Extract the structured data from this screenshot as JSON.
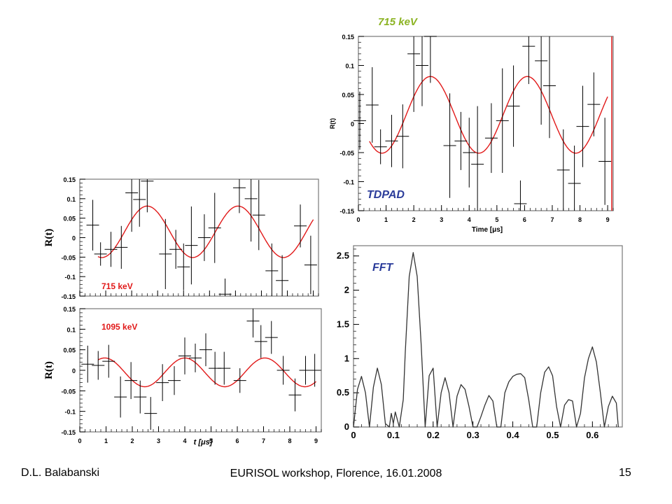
{
  "footer": {
    "author": "D.L. Balabanski",
    "event": "EURISOL workshop, Florence, 16.01.2008",
    "page": "15"
  },
  "colors": {
    "fit": "#e11919",
    "data": "#000000",
    "fft": "#333333",
    "label_blue": "#2b3c9a",
    "label_green": "#8bb322",
    "label_red": "#e11919"
  },
  "chart_data": [
    {
      "id": "tdpad-715",
      "type": "scatter",
      "title": "715 keV",
      "label": "TDPAD",
      "xlabel": "Time [μs]",
      "ylabel": "R(t)",
      "xlim": [
        0,
        9.2
      ],
      "ylim": [
        -0.15,
        0.15
      ],
      "xticks": [
        "0",
        "1",
        "2",
        "3",
        "4",
        "5",
        "6",
        "7",
        "8",
        "9"
      ],
      "yticks": [
        "0.15",
        "0.1",
        "0.05",
        "0",
        "-0.05",
        "-0.1",
        "-0.15"
      ],
      "fit": {
        "amplitude": 0.066,
        "period": 3.5,
        "phase_peak": 2.6,
        "offset": 0.015
      },
      "points": [
        {
          "x": 0.05,
          "y": 0.005,
          "err": 0.05
        },
        {
          "x": 0.5,
          "y": 0.032,
          "err": 0.065
        },
        {
          "x": 0.8,
          "y": -0.04,
          "err": 0.03
        },
        {
          "x": 1.2,
          "y": -0.03,
          "err": 0.045
        },
        {
          "x": 1.6,
          "y": -0.022,
          "err": 0.055
        },
        {
          "x": 2.0,
          "y": 0.12,
          "err": 0.1
        },
        {
          "x": 2.3,
          "y": 0.1,
          "err": 0.07
        },
        {
          "x": 2.6,
          "y": 0.15,
          "err": 0.08
        },
        {
          "x": 3.3,
          "y": -0.038,
          "err": 0.09
        },
        {
          "x": 3.7,
          "y": -0.03,
          "err": 0.05
        },
        {
          "x": 4.0,
          "y": -0.05,
          "err": 0.06
        },
        {
          "x": 4.3,
          "y": -0.07,
          "err": 0.1
        },
        {
          "x": 4.8,
          "y": -0.025,
          "err": 0.06
        },
        {
          "x": 5.2,
          "y": 0.005,
          "err": 0.09
        },
        {
          "x": 5.6,
          "y": 0.03,
          "err": 0.07
        },
        {
          "x": 5.85,
          "y": -0.138,
          "err": 0.04
        },
        {
          "x": 6.15,
          "y": 0.133,
          "err": 0.065
        },
        {
          "x": 6.6,
          "y": 0.108,
          "err": 0.11
        },
        {
          "x": 6.9,
          "y": 0.065,
          "err": 0.09
        },
        {
          "x": 7.4,
          "y": -0.08,
          "err": 0.07
        },
        {
          "x": 7.8,
          "y": -0.103,
          "err": 0.065
        },
        {
          "x": 8.1,
          "y": -0.005,
          "err": 0.07
        },
        {
          "x": 8.5,
          "y": 0.033,
          "err": 0.055
        },
        {
          "x": 8.9,
          "y": -0.065,
          "err": 0.075
        }
      ]
    },
    {
      "id": "rt-715",
      "type": "scatter",
      "label": "715  keV",
      "ylabel": "R(t)",
      "xlim": [
        0,
        9.2
      ],
      "ylim": [
        -0.15,
        0.15
      ],
      "yticks": [
        "0.15",
        "0.1",
        "0.05",
        "0",
        "-0.05",
        "-0.1",
        "-0.15"
      ],
      "fit": {
        "amplitude": 0.066,
        "period": 3.5,
        "phase_peak": 2.6,
        "offset": 0.015
      },
      "points": [
        {
          "x": 0.5,
          "y": 0.032,
          "err": 0.065
        },
        {
          "x": 0.8,
          "y": -0.042,
          "err": 0.03
        },
        {
          "x": 1.2,
          "y": -0.03,
          "err": 0.045
        },
        {
          "x": 1.6,
          "y": -0.025,
          "err": 0.055
        },
        {
          "x": 2.0,
          "y": 0.115,
          "err": 0.1
        },
        {
          "x": 2.3,
          "y": 0.098,
          "err": 0.07
        },
        {
          "x": 2.6,
          "y": 0.145,
          "err": 0.08
        },
        {
          "x": 3.3,
          "y": -0.042,
          "err": 0.09
        },
        {
          "x": 3.7,
          "y": -0.03,
          "err": 0.05
        },
        {
          "x": 4.0,
          "y": -0.075,
          "err": 0.06
        },
        {
          "x": 4.3,
          "y": -0.02,
          "err": 0.1
        },
        {
          "x": 4.8,
          "y": 0.0,
          "err": 0.06
        },
        {
          "x": 5.2,
          "y": 0.025,
          "err": 0.09
        },
        {
          "x": 5.6,
          "y": -0.145,
          "err": 0.04
        },
        {
          "x": 6.15,
          "y": 0.128,
          "err": 0.065
        },
        {
          "x": 6.6,
          "y": 0.1,
          "err": 0.11
        },
        {
          "x": 6.9,
          "y": 0.058,
          "err": 0.09
        },
        {
          "x": 7.4,
          "y": -0.085,
          "err": 0.07
        },
        {
          "x": 7.8,
          "y": -0.11,
          "err": 0.065
        },
        {
          "x": 8.5,
          "y": 0.03,
          "err": 0.055
        },
        {
          "x": 8.9,
          "y": -0.07,
          "err": 0.075
        }
      ]
    },
    {
      "id": "rt-1095",
      "type": "scatter",
      "label": "1095 keV",
      "xlabel": "t [μs]",
      "ylabel": "R(t)",
      "xlim": [
        0,
        9.2
      ],
      "ylim": [
        -0.15,
        0.15
      ],
      "xticks": [
        "0",
        "1",
        "2",
        "3",
        "4",
        "5",
        "6",
        "7",
        "8",
        "9"
      ],
      "yticks": [
        "0.15",
        "0.1",
        "0.05",
        "0",
        "-0.05",
        "-0.1",
        "-0.15"
      ],
      "fit": {
        "amplitude": 0.035,
        "period": 3.05,
        "phase_peak": 4.0,
        "offset": -0.005
      },
      "points": [
        {
          "x": 0.3,
          "y": 0.015,
          "err": 0.045
        },
        {
          "x": 0.7,
          "y": 0.012,
          "err": 0.035
        },
        {
          "x": 1.1,
          "y": 0.022,
          "err": 0.04
        },
        {
          "x": 1.55,
          "y": -0.065,
          "err": 0.05
        },
        {
          "x": 1.95,
          "y": -0.025,
          "err": 0.045
        },
        {
          "x": 2.3,
          "y": -0.065,
          "err": 0.04
        },
        {
          "x": 2.7,
          "y": -0.105,
          "err": 0.04
        },
        {
          "x": 3.15,
          "y": -0.03,
          "err": 0.045
        },
        {
          "x": 3.6,
          "y": -0.025,
          "err": 0.035
        },
        {
          "x": 4.0,
          "y": 0.035,
          "err": 0.045
        },
        {
          "x": 4.4,
          "y": 0.03,
          "err": 0.035
        },
        {
          "x": 4.8,
          "y": 0.05,
          "err": 0.04
        },
        {
          "x": 5.15,
          "y": 0.005,
          "err": 0.04
        },
        {
          "x": 5.5,
          "y": 0.005,
          "err": 0.04
        },
        {
          "x": 6.1,
          "y": -0.025,
          "err": 0.03
        },
        {
          "x": 6.6,
          "y": 0.12,
          "err": 0.04
        },
        {
          "x": 6.9,
          "y": 0.07,
          "err": 0.04
        },
        {
          "x": 7.3,
          "y": 0.08,
          "err": 0.04
        },
        {
          "x": 7.75,
          "y": 0.0,
          "err": 0.035
        },
        {
          "x": 8.2,
          "y": -0.06,
          "err": 0.04
        },
        {
          "x": 8.6,
          "y": 0.0,
          "err": 0.035
        },
        {
          "x": 8.95,
          "y": 0.0,
          "err": 0.04
        }
      ]
    },
    {
      "id": "fft",
      "type": "line",
      "label": "FFT",
      "xlim": [
        0,
        0.675
      ],
      "ylim": [
        0,
        2.65
      ],
      "xticks": [
        "0",
        "0.1",
        "0.2",
        "0.3",
        "0.4",
        "0.5",
        "0.6"
      ],
      "yticks": [
        "0",
        "0.5",
        "1",
        "1.5",
        "2",
        "2.5"
      ],
      "series": [
        {
          "x": [
            0.0,
            0.01,
            0.02,
            0.03,
            0.04,
            0.05,
            0.06,
            0.07,
            0.08,
            0.09,
            0.095,
            0.1,
            0.105,
            0.115,
            0.125,
            0.13,
            0.14,
            0.15,
            0.16,
            0.17,
            0.18,
            0.19,
            0.2,
            0.21,
            0.22,
            0.23,
            0.24,
            0.25,
            0.26,
            0.27,
            0.28,
            0.29,
            0.3,
            0.31,
            0.32,
            0.33,
            0.34,
            0.35,
            0.36,
            0.37,
            0.38,
            0.39,
            0.4,
            0.41,
            0.42,
            0.43,
            0.44,
            0.45,
            0.46,
            0.47,
            0.48,
            0.49,
            0.5,
            0.51,
            0.52,
            0.53,
            0.54,
            0.55,
            0.56,
            0.57,
            0.58,
            0.59,
            0.6,
            0.61,
            0.62,
            0.63,
            0.64,
            0.65,
            0.66,
            0.665
          ],
          "y": [
            0.0,
            0.55,
            0.74,
            0.5,
            0.0,
            0.58,
            0.86,
            0.62,
            0.05,
            0.0,
            0.2,
            0.05,
            0.22,
            0.0,
            0.4,
            1.1,
            2.2,
            2.55,
            2.2,
            1.2,
            0.0,
            0.75,
            0.86,
            0.0,
            0.5,
            0.72,
            0.5,
            0.0,
            0.45,
            0.62,
            0.55,
            0.3,
            0.0,
            0.0,
            0.15,
            0.32,
            0.46,
            0.38,
            0.0,
            0.0,
            0.5,
            0.66,
            0.74,
            0.77,
            0.78,
            0.72,
            0.4,
            0.0,
            0.0,
            0.5,
            0.8,
            0.88,
            0.75,
            0.3,
            0.0,
            0.32,
            0.4,
            0.38,
            0.0,
            0.2,
            0.72,
            1.0,
            1.17,
            0.95,
            0.5,
            0.0,
            0.3,
            0.45,
            0.35,
            0.0
          ]
        }
      ]
    }
  ]
}
